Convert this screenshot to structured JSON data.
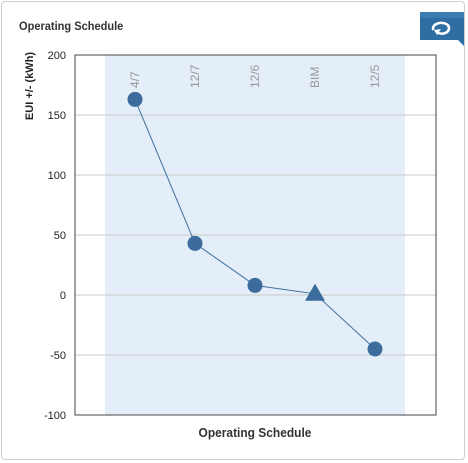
{
  "widget": {
    "title": "Operating Schedule",
    "back_icon": "undo-arrow-icon",
    "accent_color": "#2f6ea3"
  },
  "chart_data": {
    "type": "line",
    "xlabel": "Operating Schedule",
    "ylabel": "EUI +/- (kWh)",
    "ylim": [
      -100,
      200
    ],
    "yticks": [
      -100,
      -50,
      0,
      50,
      100,
      150,
      200
    ],
    "grid": true,
    "categories": [
      "4/7",
      "12/7",
      "12/6",
      "BIM",
      "12/5"
    ],
    "values": [
      163,
      43,
      8,
      1,
      -45
    ],
    "markers": [
      "circle",
      "circle",
      "circle",
      "triangle",
      "circle"
    ],
    "highlight_band": true,
    "colors": {
      "line": "#3f6e9c",
      "marker": "#3c6c9b",
      "band": "#e3eef8",
      "grid": "#c9c9c9",
      "category_label": "#999999"
    }
  }
}
